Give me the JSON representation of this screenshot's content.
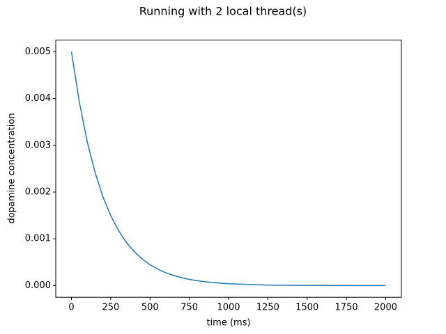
{
  "chart_data": {
    "type": "line",
    "title": "Running with 2 local thread(s)",
    "xlabel": "time (ms)",
    "ylabel": "dopamine concentration",
    "x": [
      0,
      50,
      100,
      150,
      200,
      250,
      300,
      350,
      400,
      450,
      500,
      550,
      600,
      650,
      700,
      750,
      800,
      850,
      900,
      950,
      1000,
      1250,
      1500,
      1750,
      2000
    ],
    "series": [
      {
        "color": "#1f77b4",
        "values": [
          0.005,
          0.003927,
          0.003084,
          0.002421,
          0.001902,
          0.001493,
          0.001173,
          0.000921,
          0.000723,
          0.000568,
          0.000446,
          0.00035,
          0.000275,
          0.000216,
          0.00017,
          0.000133,
          0.000105,
          8.2e-05,
          6.5e-05,
          5.1e-05,
          4e-05,
          1e-05,
          4e-06,
          1e-06,
          0
        ]
      }
    ],
    "xlim": [
      -100,
      2100
    ],
    "ylim": [
      -0.00025,
      0.00525
    ],
    "xticks": [
      0,
      250,
      500,
      750,
      1000,
      1250,
      1500,
      1750,
      2000
    ],
    "yticks": [
      {
        "value": 0,
        "label": "0.000"
      },
      {
        "value": 0.001,
        "label": "0.001"
      },
      {
        "value": 0.002,
        "label": "0.002"
      },
      {
        "value": 0.003,
        "label": "0.003"
      },
      {
        "value": 0.004,
        "label": "0.004"
      },
      {
        "value": 0.005,
        "label": "0.005"
      }
    ],
    "grid": false
  }
}
